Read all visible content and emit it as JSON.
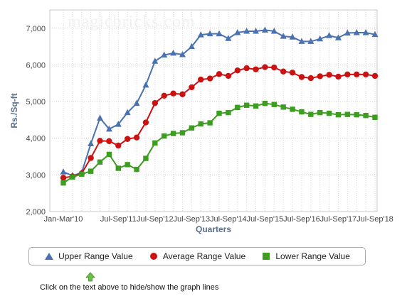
{
  "watermark": "magicbricks.com",
  "chart_data": {
    "type": "line",
    "ylabel": "Rs./Sq-ft",
    "xlabel": "Quarters",
    "ylim": [
      2000,
      7500
    ],
    "yticks": [
      2000,
      3000,
      4000,
      5000,
      6000,
      7000
    ],
    "ytick_labels": [
      "2,000",
      "3,000",
      "4,000",
      "5,000",
      "6,000",
      "7,000"
    ],
    "xtick_labels": [
      "Jan-Mar'10",
      "Jul-Sep'11",
      "Jul-Sep'12",
      "Jul-Sep'13",
      "Jul-Sep'14",
      "Jul-Sep'15",
      "Jul-Sep'16",
      "Jul-Sep'17",
      "Jul-Sep'18"
    ],
    "xtick_index": [
      0,
      6,
      10,
      14,
      18,
      22,
      26,
      30,
      34
    ],
    "x": [
      "Jan-Mar'10",
      "Apr-Jun'10",
      "Jul-Sep'10",
      "Oct-Dec'10",
      "Jan-Mar'11",
      "Apr-Jun'11",
      "Jul-Sep'11",
      "Oct-Dec'11",
      "Jan-Mar'12",
      "Apr-Jun'12",
      "Jul-Sep'12",
      "Oct-Dec'12",
      "Jan-Mar'13",
      "Apr-Jun'13",
      "Jul-Sep'13",
      "Oct-Dec'13",
      "Jan-Mar'14",
      "Apr-Jun'14",
      "Jul-Sep'14",
      "Oct-Dec'14",
      "Jan-Mar'15",
      "Apr-Jun'15",
      "Jul-Sep'15",
      "Oct-Dec'15",
      "Jan-Mar'16",
      "Apr-Jun'16",
      "Jul-Sep'16",
      "Oct-Dec'16",
      "Jan-Mar'17",
      "Apr-Jun'17",
      "Jul-Sep'17",
      "Oct-Dec'17",
      "Jan-Mar'18",
      "Apr-Jun'18",
      "Jul-Sep'18"
    ],
    "grid": true,
    "legend_position": "bottom",
    "series": [
      {
        "name": "Upper Range Value",
        "color": "#4a72b0",
        "marker": "triangle",
        "values": [
          3080,
          2980,
          3060,
          3850,
          4550,
          4250,
          4380,
          4700,
          4950,
          5450,
          6100,
          6270,
          6320,
          6280,
          6500,
          6820,
          6850,
          6850,
          6720,
          6880,
          6920,
          6920,
          6950,
          6920,
          6780,
          6760,
          6640,
          6640,
          6710,
          6800,
          6740,
          6870,
          6880,
          6880,
          6830
        ]
      },
      {
        "name": "Average Range Value",
        "color": "#cc1111",
        "marker": "circle",
        "values": [
          2920,
          2960,
          3040,
          3460,
          3930,
          3920,
          3800,
          3980,
          4020,
          4430,
          4960,
          5160,
          5220,
          5200,
          5390,
          5600,
          5630,
          5750,
          5700,
          5850,
          5910,
          5880,
          5940,
          5930,
          5820,
          5790,
          5670,
          5640,
          5690,
          5730,
          5680,
          5740,
          5740,
          5740,
          5700
        ]
      },
      {
        "name": "Lower Range Value",
        "color": "#3c9d20",
        "marker": "square",
        "values": [
          2780,
          2940,
          3020,
          3100,
          3350,
          3560,
          3180,
          3280,
          3150,
          3450,
          3870,
          4060,
          4130,
          4150,
          4280,
          4390,
          4420,
          4680,
          4700,
          4840,
          4900,
          4880,
          4950,
          4920,
          4850,
          4790,
          4720,
          4650,
          4700,
          4680,
          4640,
          4650,
          4640,
          4620,
          4570
        ]
      }
    ]
  },
  "legend": {
    "items": [
      {
        "label": "Upper Range Value",
        "color": "#4a72b0",
        "marker": "triangle"
      },
      {
        "label": "Average Range Value",
        "color": "#cc1111",
        "marker": "circle"
      },
      {
        "label": "Lower Range Value",
        "color": "#3c9d20",
        "marker": "square"
      }
    ]
  },
  "hint": {
    "icon": "green-arrow-up-icon",
    "text": "Click on the text above to hide/show the graph lines"
  }
}
